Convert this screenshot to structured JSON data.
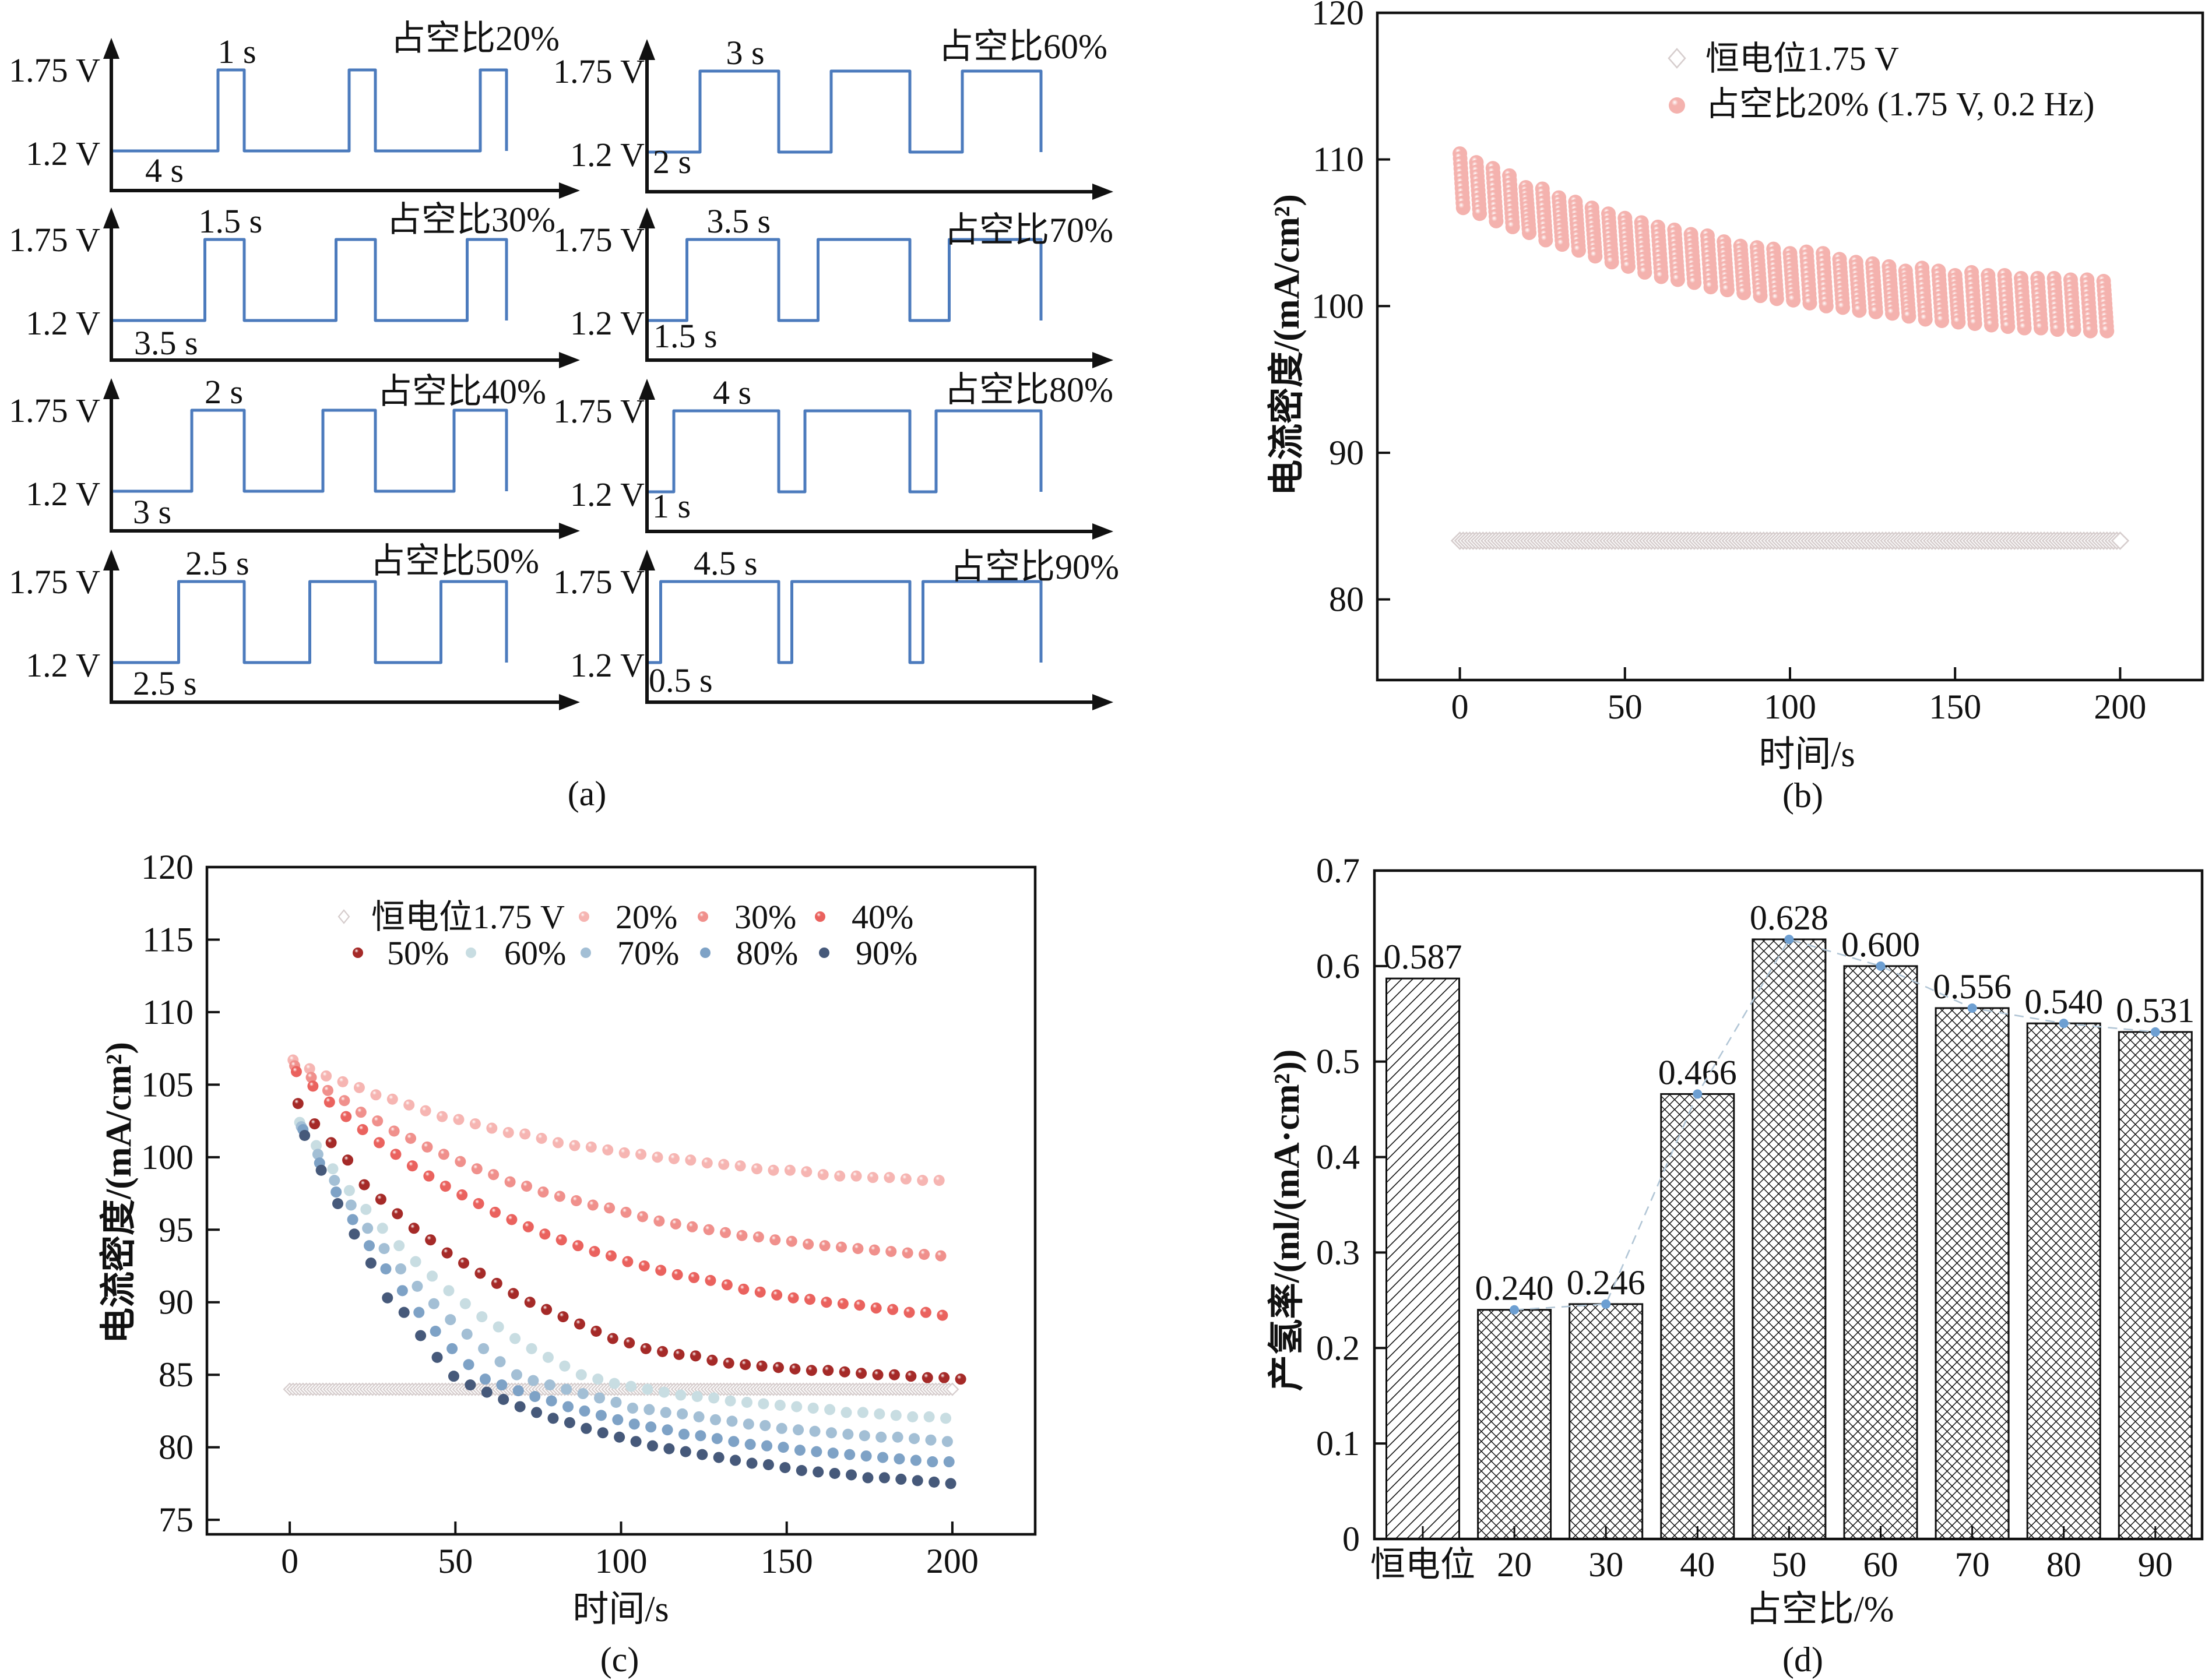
{
  "captions": {
    "a": "(a)",
    "b": "(b)",
    "c": "(c)",
    "d": "(d)"
  },
  "chart_data": [
    {
      "panel": "a",
      "type": "line",
      "title": "",
      "voltage_levels": {
        "high": 1.75,
        "low": 1.2
      },
      "voltage_tick_labels": {
        "high": "1.75 V",
        "low": "1.2 V"
      },
      "cycles_shown": 3,
      "waveform_color": "#4c7bbd",
      "subplots": [
        {
          "title": "占空比20%",
          "duty_cycle_percent": 20,
          "high_time_s": 1,
          "low_time_s": 4,
          "high_time_label": "1 s",
          "low_time_label": "4 s"
        },
        {
          "title": "占空比30%",
          "duty_cycle_percent": 30,
          "high_time_s": 1.5,
          "low_time_s": 3.5,
          "high_time_label": "1.5 s",
          "low_time_label": "3.5 s"
        },
        {
          "title": "占空比40%",
          "duty_cycle_percent": 40,
          "high_time_s": 2,
          "low_time_s": 3,
          "high_time_label": "2 s",
          "low_time_label": "3 s"
        },
        {
          "title": "占空比50%",
          "duty_cycle_percent": 50,
          "high_time_s": 2.5,
          "low_time_s": 2.5,
          "high_time_label": "2.5 s",
          "low_time_label": "2.5 s"
        },
        {
          "title": "占空比60%",
          "duty_cycle_percent": 60,
          "high_time_s": 3,
          "low_time_s": 2,
          "high_time_label": "3 s",
          "low_time_label": "2 s"
        },
        {
          "title": "占空比70%",
          "duty_cycle_percent": 70,
          "high_time_s": 3.5,
          "low_time_s": 1.5,
          "high_time_label": "3.5 s",
          "low_time_label": "1.5 s"
        },
        {
          "title": "占空比80%",
          "duty_cycle_percent": 80,
          "high_time_s": 4,
          "low_time_s": 1,
          "high_time_label": "4 s",
          "low_time_label": "1 s"
        },
        {
          "title": "占空比90%",
          "duty_cycle_percent": 90,
          "high_time_s": 4.5,
          "low_time_s": 0.5,
          "high_time_label": "4.5 s",
          "low_time_label": "0.5 s"
        }
      ]
    },
    {
      "panel": "b",
      "type": "scatter",
      "title": "",
      "xlabel": "时间/s",
      "ylabel": "电流密度/(mA/cm²)",
      "xlim": [
        -25,
        225
      ],
      "ylim": [
        74.5,
        120
      ],
      "xticks": [
        0,
        50,
        100,
        150,
        200
      ],
      "xtick_labels": [
        "0",
        "50",
        "100",
        "150",
        "200"
      ],
      "yticks": [
        80,
        90,
        100,
        110,
        120
      ],
      "ytick_labels": [
        "80",
        "90",
        "100",
        "110",
        "120"
      ],
      "grid": false,
      "legend_position": "top-right",
      "series": [
        {
          "name": "恒电位1.75 V",
          "marker": "diamond-open",
          "color": "#d6cdcd",
          "x_start": 0,
          "x_end": 200,
          "x_step": 1,
          "y_constant": 84.0
        },
        {
          "name": "占空比20% (1.75 V, 0.2 Hz)",
          "marker": "circle",
          "color": "#f4b2ae",
          "shaded": true,
          "pulse_duration_s": 1,
          "pulse_start_s": [
            0,
            5,
            10,
            15,
            20,
            25,
            30,
            35,
            40,
            45,
            50,
            55,
            60,
            65,
            70,
            75,
            80,
            85,
            90,
            95,
            100,
            105,
            110,
            115,
            120,
            125,
            130,
            135,
            140,
            145,
            150,
            155,
            160,
            165,
            170,
            175,
            180,
            185,
            190,
            195
          ],
          "y_pulse_start": [
            110.4,
            109.8,
            109.4,
            108.9,
            108.1,
            108.0,
            107.4,
            107.1,
            106.7,
            106.3,
            106.0,
            105.7,
            105.4,
            105.2,
            104.9,
            104.8,
            104.4,
            104.1,
            104.0,
            103.9,
            103.6,
            103.7,
            103.6,
            103.2,
            103.0,
            102.9,
            102.7,
            102.4,
            102.6,
            102.4,
            102.1,
            102.3,
            102.1,
            102.1,
            101.9,
            101.9,
            101.9,
            101.8,
            101.8,
            101.7
          ],
          "y_pulse_end": [
            106.7,
            106.3,
            105.8,
            105.4,
            105.0,
            104.5,
            104.2,
            103.8,
            103.4,
            103.0,
            102.7,
            102.3,
            102.0,
            101.8,
            101.6,
            101.3,
            101.1,
            100.9,
            100.7,
            100.5,
            100.4,
            100.2,
            100.0,
            99.9,
            99.7,
            99.6,
            99.5,
            99.3,
            99.1,
            99.0,
            98.9,
            98.8,
            98.7,
            98.6,
            98.5,
            98.5,
            98.4,
            98.4,
            98.3,
            98.3
          ]
        }
      ]
    },
    {
      "panel": "c",
      "type": "scatter",
      "title": "",
      "xlabel": "时间/s",
      "ylabel": "电流密度/(mA/cm²)",
      "xlim": [
        -25,
        225
      ],
      "ylim": [
        74,
        120
      ],
      "xticks": [
        0,
        50,
        100,
        150,
        200
      ],
      "xtick_labels": [
        "0",
        "50",
        "100",
        "150",
        "200"
      ],
      "yticks": [
        75,
        80,
        85,
        90,
        95,
        100,
        105,
        110,
        115,
        120
      ],
      "ytick_labels": [
        "75",
        "80",
        "85",
        "90",
        "95",
        "100",
        "105",
        "110",
        "115",
        "120"
      ],
      "grid": false,
      "legend_position": "top-center",
      "series": [
        {
          "name": "恒电位1.75 V",
          "marker": "diamond-open",
          "color": "#d6cdcd",
          "x_start": 0,
          "x_end": 200,
          "x_step": 1,
          "y_constant": 84.0
        },
        {
          "name": "20%",
          "color": "#f6b5b2",
          "shaded": true,
          "x_start": 1,
          "x_step": 5,
          "y": [
            106.7,
            106.1,
            105.6,
            105.2,
            104.8,
            104.3,
            104.0,
            103.6,
            103.2,
            102.8,
            102.6,
            102.3,
            102.0,
            101.7,
            101.6,
            101.3,
            101.0,
            100.8,
            100.7,
            100.5,
            100.3,
            100.2,
            100.0,
            99.9,
            99.8,
            99.6,
            99.5,
            99.4,
            99.2,
            99.1,
            99.1,
            99.0,
            98.8,
            98.7,
            98.7,
            98.6,
            98.6,
            98.5,
            98.4,
            98.4
          ]
        },
        {
          "name": "30%",
          "color": "#f0908c",
          "shaded": true,
          "x_start": 1.5,
          "x_step": 5,
          "y": [
            106.3,
            105.5,
            104.6,
            103.9,
            103.1,
            102.5,
            101.8,
            101.3,
            100.7,
            100.2,
            99.7,
            99.2,
            98.8,
            98.3,
            98.0,
            97.6,
            97.3,
            97.0,
            96.7,
            96.5,
            96.2,
            95.9,
            95.6,
            95.4,
            95.2,
            95.0,
            94.8,
            94.6,
            94.5,
            94.3,
            94.2,
            94.0,
            93.9,
            93.8,
            93.7,
            93.6,
            93.5,
            93.4,
            93.3,
            93.2
          ]
        },
        {
          "name": "40%",
          "color": "#ea625e",
          "shaded": true,
          "x_start": 2,
          "x_step": 5,
          "y": [
            105.9,
            104.9,
            103.8,
            102.8,
            101.9,
            101.0,
            100.2,
            99.4,
            98.7,
            98.0,
            97.4,
            96.8,
            96.2,
            95.7,
            95.2,
            94.7,
            94.3,
            93.9,
            93.5,
            93.2,
            92.8,
            92.5,
            92.2,
            91.9,
            91.7,
            91.5,
            91.2,
            90.9,
            90.7,
            90.5,
            90.3,
            90.2,
            90.0,
            89.9,
            89.8,
            89.6,
            89.5,
            89.3,
            89.3,
            89.1
          ]
        },
        {
          "name": "50%",
          "color": "#a52a28",
          "shaded": true,
          "x_start": 2.5,
          "x_step": 5,
          "y": [
            103.7,
            102.3,
            101.0,
            99.8,
            98.1,
            97.1,
            96.1,
            95.1,
            94.3,
            93.4,
            92.7,
            92.0,
            91.3,
            90.6,
            90.0,
            89.5,
            89.0,
            88.5,
            88.0,
            87.5,
            87.2,
            86.8,
            86.6,
            86.4,
            86.3,
            86.0,
            85.8,
            85.7,
            85.6,
            85.5,
            85.4,
            85.3,
            85.3,
            85.2,
            85.1,
            85.0,
            85.0,
            84.9,
            84.8,
            84.8,
            84.7
          ]
        },
        {
          "name": "60%",
          "color": "#c8dde2",
          "shaded": false,
          "x_start": 3,
          "x_step": 5,
          "y": [
            102.4,
            100.8,
            99.2,
            97.7,
            96.4,
            95.1,
            93.9,
            92.8,
            91.8,
            90.8,
            89.9,
            89.0,
            88.3,
            87.5,
            86.8,
            86.2,
            85.6,
            85.0,
            84.7,
            84.4,
            84.2,
            84.0,
            83.8,
            83.6,
            83.5,
            83.4,
            83.2,
            83.1,
            83.0,
            82.9,
            82.8,
            82.7,
            82.6,
            82.4,
            82.4,
            82.3,
            82.2,
            82.1,
            82.1,
            82.0
          ]
        },
        {
          "name": "70%",
          "color": "#a3bfd5",
          "shaded": false,
          "x_start": 3.5,
          "x_step": 5,
          "y": [
            102.1,
            100.2,
            98.4,
            96.7,
            95.1,
            93.7,
            92.3,
            91.1,
            89.9,
            88.8,
            87.8,
            86.8,
            85.9,
            85.0,
            84.6,
            84.3,
            84.0,
            83.7,
            83.4,
            83.1,
            82.7,
            82.6,
            82.4,
            82.3,
            82.1,
            81.9,
            81.8,
            81.6,
            81.5,
            81.3,
            81.2,
            81.1,
            81.0,
            80.9,
            80.8,
            80.7,
            80.7,
            80.6,
            80.5,
            80.4
          ]
        },
        {
          "name": "80%",
          "color": "#7ea2c6",
          "shaded": false,
          "x_start": 4,
          "x_step": 5,
          "y": [
            101.9,
            99.6,
            97.6,
            95.7,
            93.9,
            92.3,
            90.8,
            89.3,
            88.0,
            86.8,
            85.7,
            84.7,
            84.3,
            83.9,
            83.5,
            83.2,
            82.8,
            82.5,
            82.2,
            81.9,
            81.6,
            81.4,
            81.2,
            80.9,
            80.8,
            80.6,
            80.4,
            80.2,
            80.1,
            80.0,
            79.8,
            79.7,
            79.6,
            79.5,
            79.4,
            79.3,
            79.2,
            79.1,
            79.0,
            79.0
          ]
        },
        {
          "name": "90%",
          "color": "#46597a",
          "shaded": false,
          "x_start": 4.5,
          "x_step": 5,
          "y": [
            101.5,
            99.1,
            96.8,
            94.7,
            92.7,
            90.3,
            89.3,
            87.7,
            86.2,
            84.9,
            84.3,
            83.8,
            83.3,
            82.8,
            82.4,
            82.0,
            81.7,
            81.3,
            81.0,
            80.7,
            80.4,
            80.1,
            79.9,
            79.7,
            79.5,
            79.3,
            79.1,
            78.9,
            78.8,
            78.6,
            78.4,
            78.3,
            78.2,
            78.1,
            77.9,
            77.9,
            77.8,
            77.7,
            77.6,
            77.5
          ]
        }
      ]
    },
    {
      "panel": "d",
      "type": "bar",
      "title": "",
      "xlabel": "占空比/%",
      "ylabel": "产氢率/(ml/(mA·cm²))",
      "categories": [
        "恒电位",
        "20",
        "30",
        "40",
        "50",
        "60",
        "70",
        "80",
        "90"
      ],
      "values": [
        0.587,
        0.24,
        0.246,
        0.466,
        0.628,
        0.6,
        0.556,
        0.54,
        0.531
      ],
      "value_labels": [
        "0.587",
        "0.240",
        "0.246",
        "0.466",
        "0.628",
        "0.600",
        "0.556",
        "0.540",
        "0.531"
      ],
      "ylim": [
        0,
        0.7
      ],
      "yticks": [
        0,
        0.1,
        0.2,
        0.3,
        0.4,
        0.5,
        0.6,
        0.7
      ],
      "ytick_labels": [
        "0",
        "0.1",
        "0.2",
        "0.3",
        "0.4",
        "0.5",
        "0.6",
        "0.7"
      ],
      "grid": false,
      "bar_hatch": [
        "diagonal",
        "crosshatch",
        "crosshatch",
        "crosshatch",
        "crosshatch",
        "crosshatch",
        "crosshatch",
        "crosshatch",
        "crosshatch"
      ],
      "overlay_line": {
        "from_category_index": 1,
        "to_category_index": 8,
        "style": "dashed",
        "marker_color": "#6d9fd2",
        "line_color": "#b2c6d6"
      }
    }
  ]
}
